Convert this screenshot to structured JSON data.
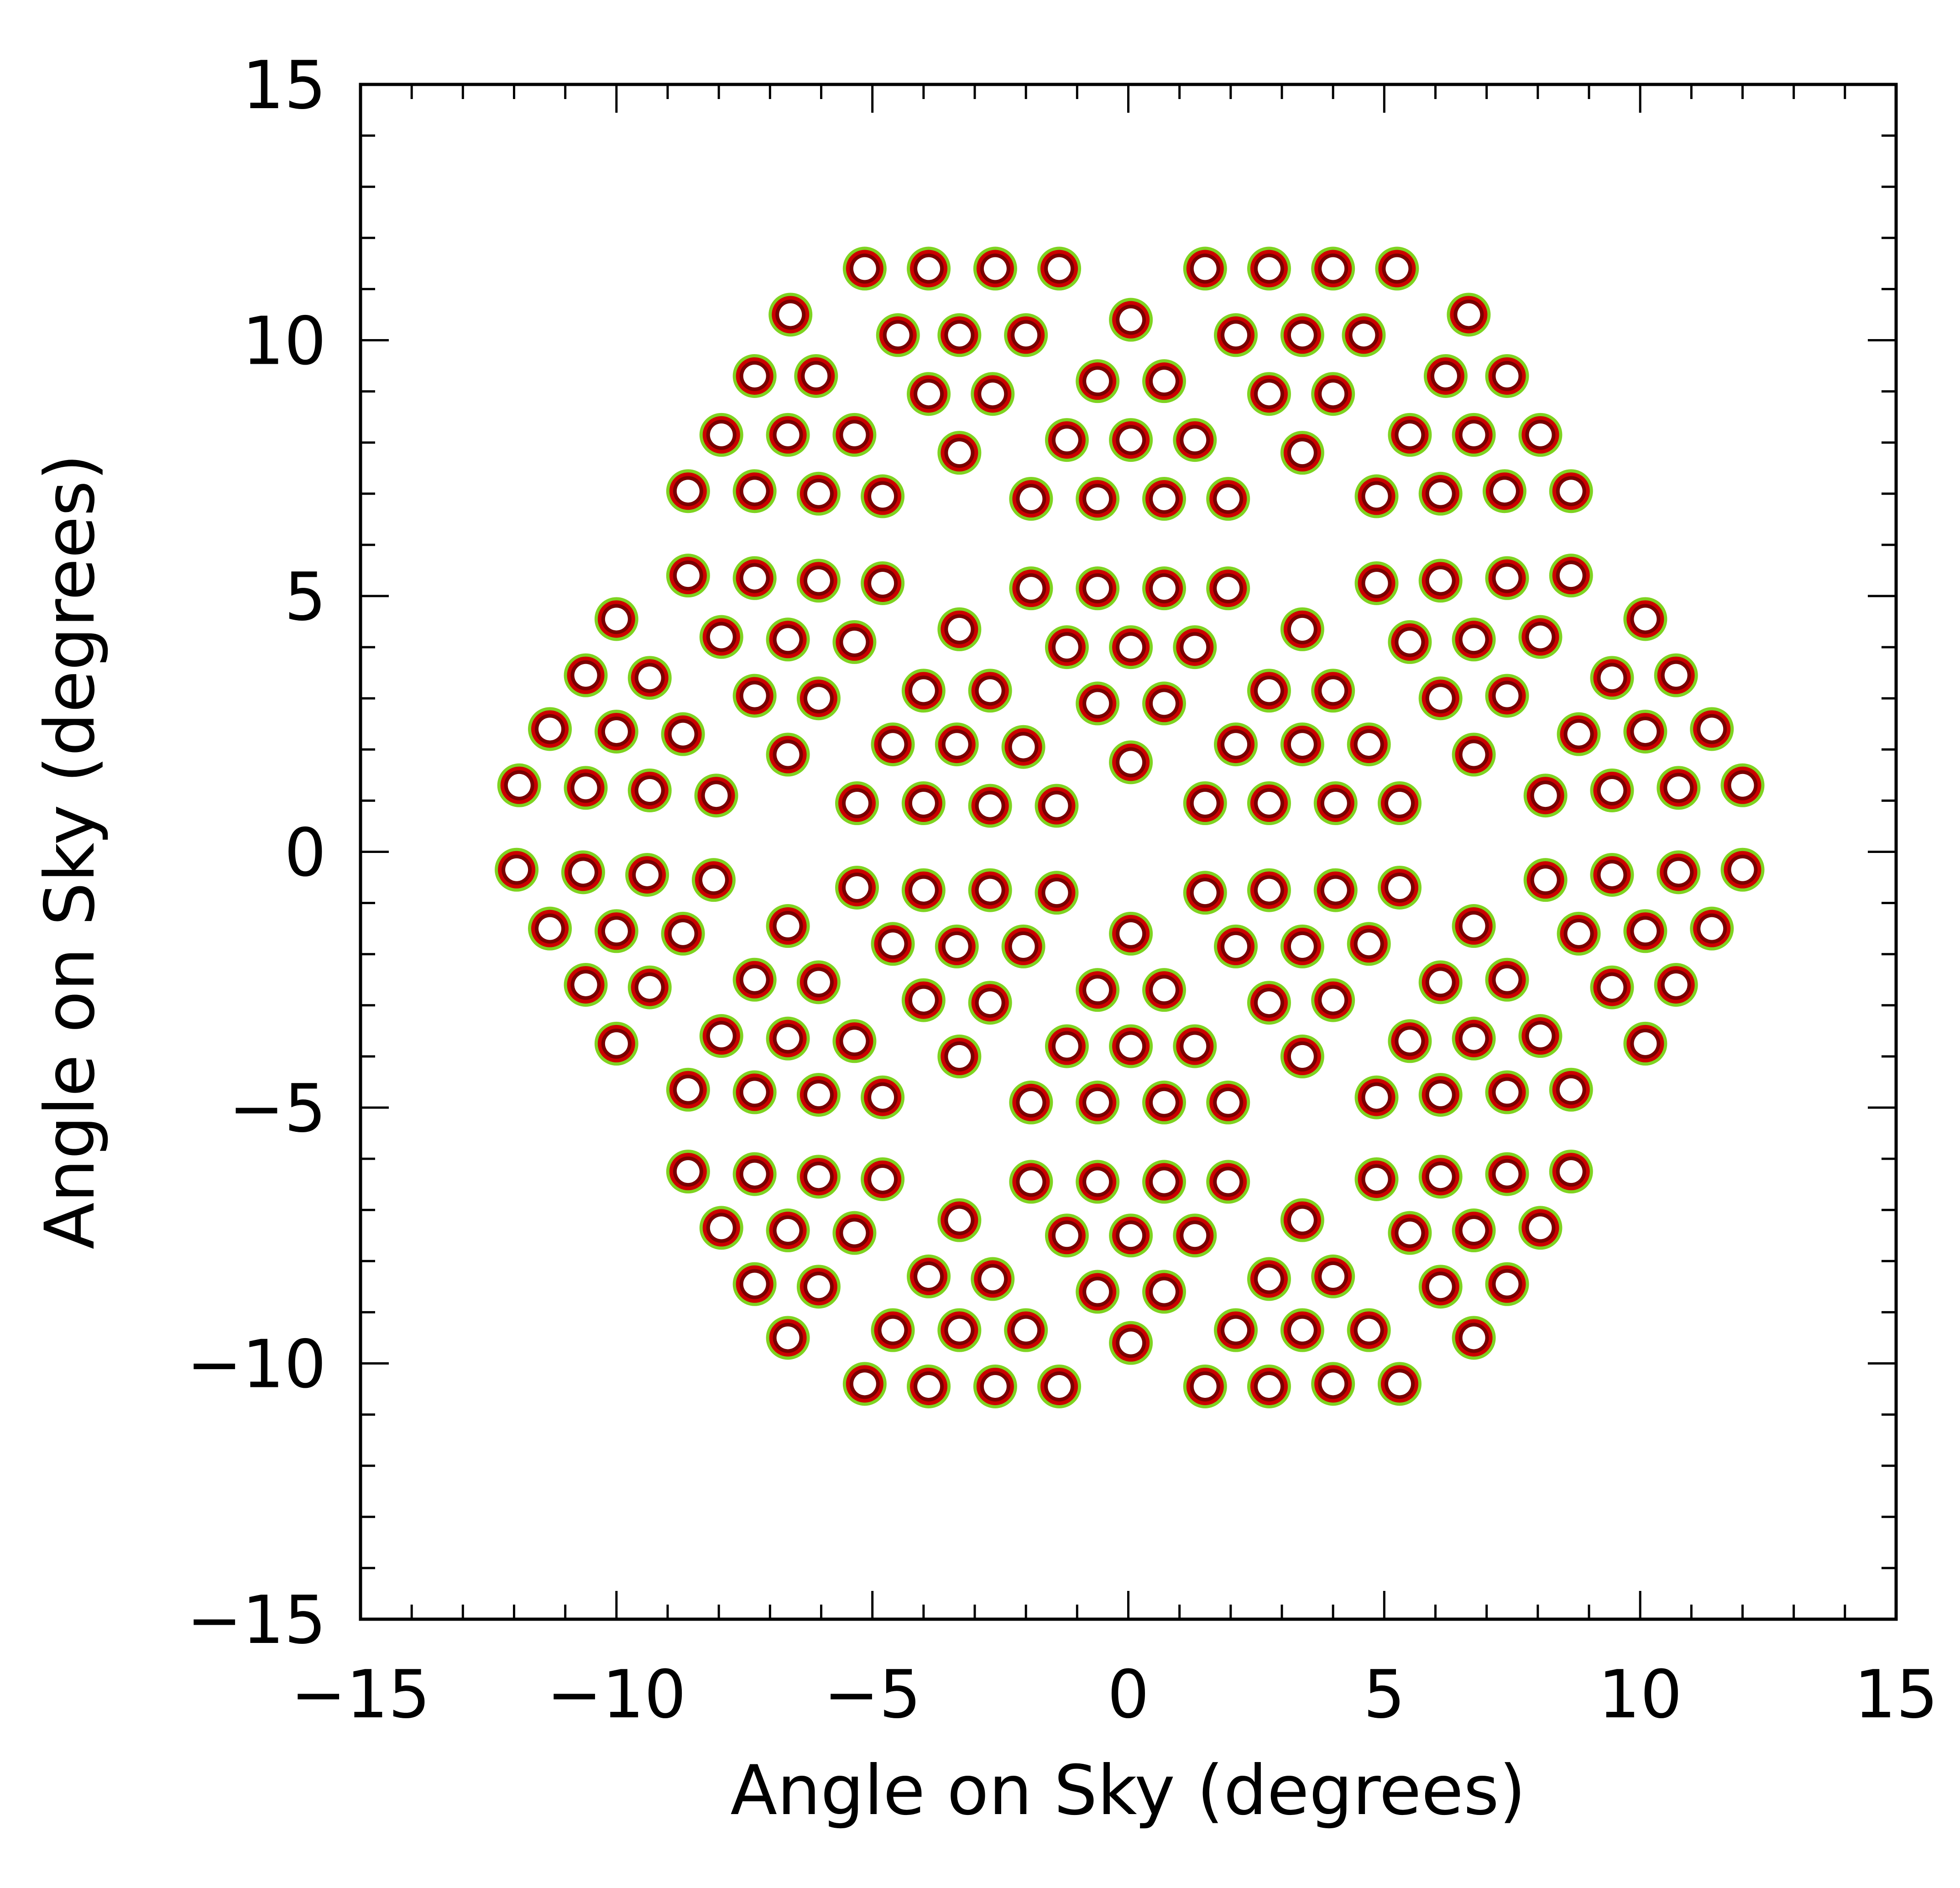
{
  "chart_data": {
    "type": "scatter",
    "title": "",
    "xlabel": "Angle on Sky (degrees)",
    "ylabel": "Angle on Sky (degrees)",
    "xlim": [
      -15,
      15
    ],
    "ylim": [
      -15,
      15
    ],
    "x_ticks": [
      -15,
      -10,
      -5,
      0,
      5,
      10,
      15
    ],
    "y_ticks": [
      -15,
      -10,
      -5,
      0,
      5,
      10,
      15
    ],
    "x_tick_labels": [
      "−15",
      "−10",
      "−5",
      "0",
      "5",
      "10",
      "15"
    ],
    "y_tick_labels": [
      "−15",
      "−10",
      "−5",
      "0",
      "5",
      "10",
      "15"
    ],
    "minor_tick_step": 1,
    "grid": false,
    "legend": false,
    "marker_colors": {
      "outer": "#7ed321",
      "ring": "#cc0000",
      "inner": "#7a0000",
      "center": "#ffffff"
    },
    "points": [
      [
        -5.15,
        11.4
      ],
      [
        -3.9,
        11.4
      ],
      [
        -2.6,
        11.4
      ],
      [
        -1.35,
        11.4
      ],
      [
        1.5,
        11.4
      ],
      [
        2.75,
        11.4
      ],
      [
        4.0,
        11.4
      ],
      [
        5.25,
        11.4
      ],
      [
        -6.6,
        10.5
      ],
      [
        -4.5,
        10.1
      ],
      [
        -3.3,
        10.1
      ],
      [
        -2.0,
        10.1
      ],
      [
        0.05,
        10.4
      ],
      [
        2.1,
        10.1
      ],
      [
        3.4,
        10.1
      ],
      [
        4.6,
        10.1
      ],
      [
        6.65,
        10.5
      ],
      [
        -7.3,
        9.3
      ],
      [
        -6.1,
        9.3
      ],
      [
        -3.9,
        8.95
      ],
      [
        -2.65,
        8.95
      ],
      [
        -0.6,
        9.2
      ],
      [
        0.7,
        9.2
      ],
      [
        2.75,
        8.95
      ],
      [
        4.0,
        8.95
      ],
      [
        6.2,
        9.3
      ],
      [
        7.4,
        9.3
      ],
      [
        -7.95,
        8.15
      ],
      [
        -6.65,
        8.15
      ],
      [
        -5.35,
        8.15
      ],
      [
        -3.3,
        7.8
      ],
      [
        -1.2,
        8.05
      ],
      [
        0.05,
        8.05
      ],
      [
        1.3,
        8.05
      ],
      [
        3.4,
        7.8
      ],
      [
        5.5,
        8.15
      ],
      [
        6.75,
        8.15
      ],
      [
        8.05,
        8.15
      ],
      [
        -8.6,
        7.05
      ],
      [
        -7.3,
        7.05
      ],
      [
        -6.05,
        7.0
      ],
      [
        -4.8,
        6.95
      ],
      [
        -1.9,
        6.9
      ],
      [
        -0.6,
        6.9
      ],
      [
        0.7,
        6.9
      ],
      [
        1.95,
        6.9
      ],
      [
        4.85,
        6.95
      ],
      [
        6.1,
        7.0
      ],
      [
        7.35,
        7.05
      ],
      [
        8.65,
        7.05
      ],
      [
        -8.6,
        5.4
      ],
      [
        -7.3,
        5.35
      ],
      [
        -6.05,
        5.3
      ],
      [
        -4.8,
        5.25
      ],
      [
        -1.9,
        5.15
      ],
      [
        -0.6,
        5.15
      ],
      [
        0.7,
        5.15
      ],
      [
        1.95,
        5.15
      ],
      [
        4.85,
        5.25
      ],
      [
        6.1,
        5.3
      ],
      [
        7.4,
        5.35
      ],
      [
        8.65,
        5.4
      ],
      [
        -10.0,
        4.55
      ],
      [
        -7.95,
        4.2
      ],
      [
        -6.65,
        4.15
      ],
      [
        -5.35,
        4.1
      ],
      [
        -3.3,
        4.35
      ],
      [
        -1.2,
        4.0
      ],
      [
        0.05,
        4.0
      ],
      [
        1.3,
        4.0
      ],
      [
        3.4,
        4.35
      ],
      [
        5.5,
        4.1
      ],
      [
        6.75,
        4.15
      ],
      [
        8.05,
        4.2
      ],
      [
        10.1,
        4.55
      ],
      [
        -10.6,
        3.45
      ],
      [
        -9.35,
        3.4
      ],
      [
        -7.3,
        3.05
      ],
      [
        -6.05,
        3.0
      ],
      [
        -4.0,
        3.15
      ],
      [
        -2.7,
        3.15
      ],
      [
        -0.6,
        2.9
      ],
      [
        0.7,
        2.9
      ],
      [
        2.75,
        3.15
      ],
      [
        4.0,
        3.15
      ],
      [
        6.1,
        3.0
      ],
      [
        7.4,
        3.05
      ],
      [
        9.45,
        3.4
      ],
      [
        10.7,
        3.45
      ],
      [
        -11.3,
        2.4
      ],
      [
        -10.0,
        2.35
      ],
      [
        -8.7,
        2.3
      ],
      [
        -6.65,
        1.9
      ],
      [
        -4.6,
        2.1
      ],
      [
        -3.35,
        2.1
      ],
      [
        -2.05,
        2.05
      ],
      [
        0.05,
        1.75
      ],
      [
        2.1,
        2.1
      ],
      [
        3.4,
        2.1
      ],
      [
        4.7,
        2.1
      ],
      [
        6.75,
        1.9
      ],
      [
        8.8,
        2.3
      ],
      [
        10.1,
        2.35
      ],
      [
        11.4,
        2.4
      ],
      [
        -11.9,
        1.3
      ],
      [
        -10.6,
        1.25
      ],
      [
        -9.35,
        1.2
      ],
      [
        -8.05,
        1.1
      ],
      [
        -5.3,
        0.95
      ],
      [
        -4.0,
        0.95
      ],
      [
        -2.7,
        0.9
      ],
      [
        -1.4,
        0.9
      ],
      [
        1.5,
        0.95
      ],
      [
        2.75,
        0.95
      ],
      [
        4.05,
        0.95
      ],
      [
        5.3,
        0.95
      ],
      [
        8.15,
        1.1
      ],
      [
        9.45,
        1.2
      ],
      [
        10.75,
        1.25
      ],
      [
        12.0,
        1.3
      ],
      [
        -11.95,
        -0.35
      ],
      [
        -10.65,
        -0.4
      ],
      [
        -9.4,
        -0.45
      ],
      [
        -8.1,
        -0.55
      ],
      [
        -5.3,
        -0.7
      ],
      [
        -4.0,
        -0.75
      ],
      [
        -2.7,
        -0.75
      ],
      [
        -1.4,
        -0.8
      ],
      [
        1.5,
        -0.8
      ],
      [
        2.75,
        -0.75
      ],
      [
        4.05,
        -0.75
      ],
      [
        5.3,
        -0.7
      ],
      [
        8.15,
        -0.55
      ],
      [
        9.45,
        -0.45
      ],
      [
        10.75,
        -0.4
      ],
      [
        12.0,
        -0.35
      ],
      [
        -11.3,
        -1.5
      ],
      [
        -10.0,
        -1.55
      ],
      [
        -8.7,
        -1.6
      ],
      [
        -6.65,
        -1.45
      ],
      [
        -4.6,
        -1.8
      ],
      [
        -3.35,
        -1.85
      ],
      [
        -2.05,
        -1.85
      ],
      [
        0.05,
        -1.6
      ],
      [
        2.1,
        -1.85
      ],
      [
        3.4,
        -1.85
      ],
      [
        4.7,
        -1.8
      ],
      [
        6.75,
        -1.45
      ],
      [
        8.8,
        -1.6
      ],
      [
        10.1,
        -1.55
      ],
      [
        11.4,
        -1.5
      ],
      [
        -10.6,
        -2.6
      ],
      [
        -9.35,
        -2.65
      ],
      [
        -7.3,
        -2.5
      ],
      [
        -6.05,
        -2.55
      ],
      [
        -4.0,
        -2.9
      ],
      [
        -2.7,
        -2.95
      ],
      [
        -0.6,
        -2.7
      ],
      [
        0.7,
        -2.7
      ],
      [
        2.75,
        -2.95
      ],
      [
        4.0,
        -2.9
      ],
      [
        6.1,
        -2.55
      ],
      [
        7.4,
        -2.5
      ],
      [
        9.45,
        -2.65
      ],
      [
        10.7,
        -2.6
      ],
      [
        -10.0,
        -3.75
      ],
      [
        -7.95,
        -3.6
      ],
      [
        -6.65,
        -3.65
      ],
      [
        -5.35,
        -3.7
      ],
      [
        -3.3,
        -4.0
      ],
      [
        -1.2,
        -3.8
      ],
      [
        0.05,
        -3.8
      ],
      [
        1.3,
        -3.8
      ],
      [
        3.4,
        -4.0
      ],
      [
        5.5,
        -3.7
      ],
      [
        6.75,
        -3.65
      ],
      [
        8.05,
        -3.6
      ],
      [
        10.1,
        -3.75
      ],
      [
        -8.6,
        -4.65
      ],
      [
        -7.3,
        -4.7
      ],
      [
        -6.05,
        -4.75
      ],
      [
        -4.8,
        -4.8
      ],
      [
        -1.9,
        -4.9
      ],
      [
        -0.6,
        -4.9
      ],
      [
        0.7,
        -4.9
      ],
      [
        1.95,
        -4.9
      ],
      [
        4.85,
        -4.8
      ],
      [
        6.1,
        -4.75
      ],
      [
        7.4,
        -4.7
      ],
      [
        8.65,
        -4.65
      ],
      [
        -8.6,
        -6.25
      ],
      [
        -7.3,
        -6.3
      ],
      [
        -6.05,
        -6.35
      ],
      [
        -4.8,
        -6.4
      ],
      [
        -1.9,
        -6.45
      ],
      [
        -0.6,
        -6.45
      ],
      [
        0.7,
        -6.45
      ],
      [
        1.95,
        -6.45
      ],
      [
        4.85,
        -6.4
      ],
      [
        6.1,
        -6.35
      ],
      [
        7.4,
        -6.3
      ],
      [
        8.65,
        -6.25
      ],
      [
        -7.95,
        -7.35
      ],
      [
        -6.65,
        -7.4
      ],
      [
        -5.35,
        -7.45
      ],
      [
        -3.3,
        -7.2
      ],
      [
        -1.2,
        -7.5
      ],
      [
        0.05,
        -7.5
      ],
      [
        1.3,
        -7.5
      ],
      [
        3.4,
        -7.2
      ],
      [
        5.5,
        -7.45
      ],
      [
        6.75,
        -7.4
      ],
      [
        8.05,
        -7.35
      ],
      [
        -7.3,
        -8.45
      ],
      [
        -6.05,
        -8.5
      ],
      [
        -3.9,
        -8.3
      ],
      [
        -2.65,
        -8.35
      ],
      [
        -0.6,
        -8.6
      ],
      [
        0.7,
        -8.6
      ],
      [
        2.75,
        -8.35
      ],
      [
        4.0,
        -8.3
      ],
      [
        6.1,
        -8.5
      ],
      [
        7.4,
        -8.45
      ],
      [
        -6.65,
        -9.5
      ],
      [
        -4.6,
        -9.35
      ],
      [
        -3.3,
        -9.35
      ],
      [
        -2.0,
        -9.35
      ],
      [
        0.05,
        -9.6
      ],
      [
        2.1,
        -9.35
      ],
      [
        3.4,
        -9.35
      ],
      [
        4.7,
        -9.35
      ],
      [
        6.75,
        -9.5
      ],
      [
        -5.15,
        -10.4
      ],
      [
        -3.9,
        -10.45
      ],
      [
        -2.6,
        -10.45
      ],
      [
        -1.35,
        -10.45
      ],
      [
        1.5,
        -10.45
      ],
      [
        2.75,
        -10.45
      ],
      [
        4.0,
        -10.4
      ],
      [
        5.3,
        -10.4
      ]
    ]
  }
}
